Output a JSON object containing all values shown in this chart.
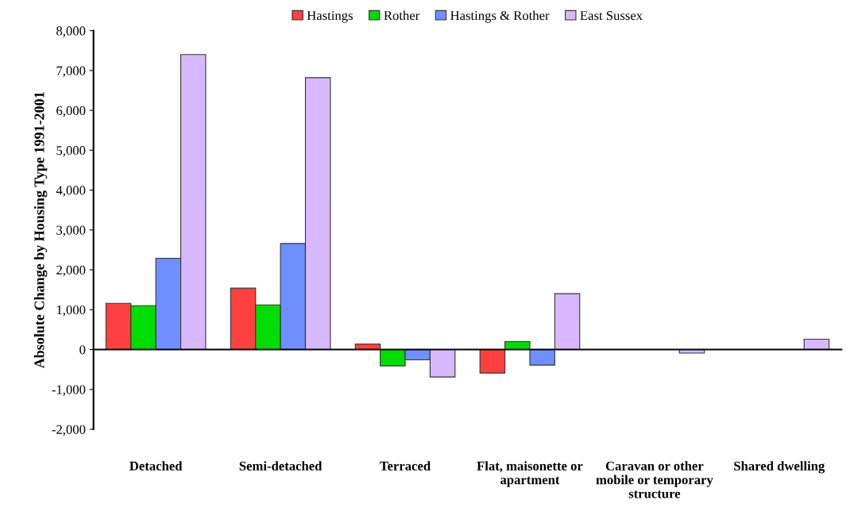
{
  "chart_data": {
    "type": "bar",
    "ylabel": "Absolute Change by Housing Type 1991-2001",
    "categories": [
      "Detached",
      "Semi-detached",
      "Terraced",
      "Flat, maisonette or apartment",
      "Caravan or other mobile or temporary structure",
      "Shared dwelling"
    ],
    "series": [
      {
        "name": "Hastings",
        "color": "#ff4040",
        "values": [
          1160,
          1540,
          140,
          -590,
          null,
          null
        ]
      },
      {
        "name": "Rother",
        "color": "#00dd00",
        "values": [
          1100,
          1120,
          -410,
          200,
          null,
          null
        ]
      },
      {
        "name": "Hastings & Rother",
        "color": "#6e8fff",
        "values": [
          2290,
          2660,
          -260,
          -390,
          null,
          null
        ]
      },
      {
        "name": "East Sussex",
        "color": "#d8b8ff",
        "values": [
          7400,
          6820,
          -690,
          1400,
          -90,
          260
        ]
      }
    ],
    "ylim": [
      -2000,
      8000
    ],
    "yticks": [
      {
        "value": -2000,
        "label": "-2,000"
      },
      {
        "value": -1000,
        "label": "-1,000"
      },
      {
        "value": 0,
        "label": "0"
      },
      {
        "value": 1000,
        "label": "1,000"
      },
      {
        "value": 2000,
        "label": "2,000"
      },
      {
        "value": 3000,
        "label": "3,000"
      },
      {
        "value": 4000,
        "label": "4,000"
      },
      {
        "value": 5000,
        "label": "5,000"
      },
      {
        "value": 6000,
        "label": "6,000"
      },
      {
        "value": 7000,
        "label": "7,000"
      },
      {
        "value": 8000,
        "label": "8,000"
      }
    ],
    "legend": "top"
  }
}
